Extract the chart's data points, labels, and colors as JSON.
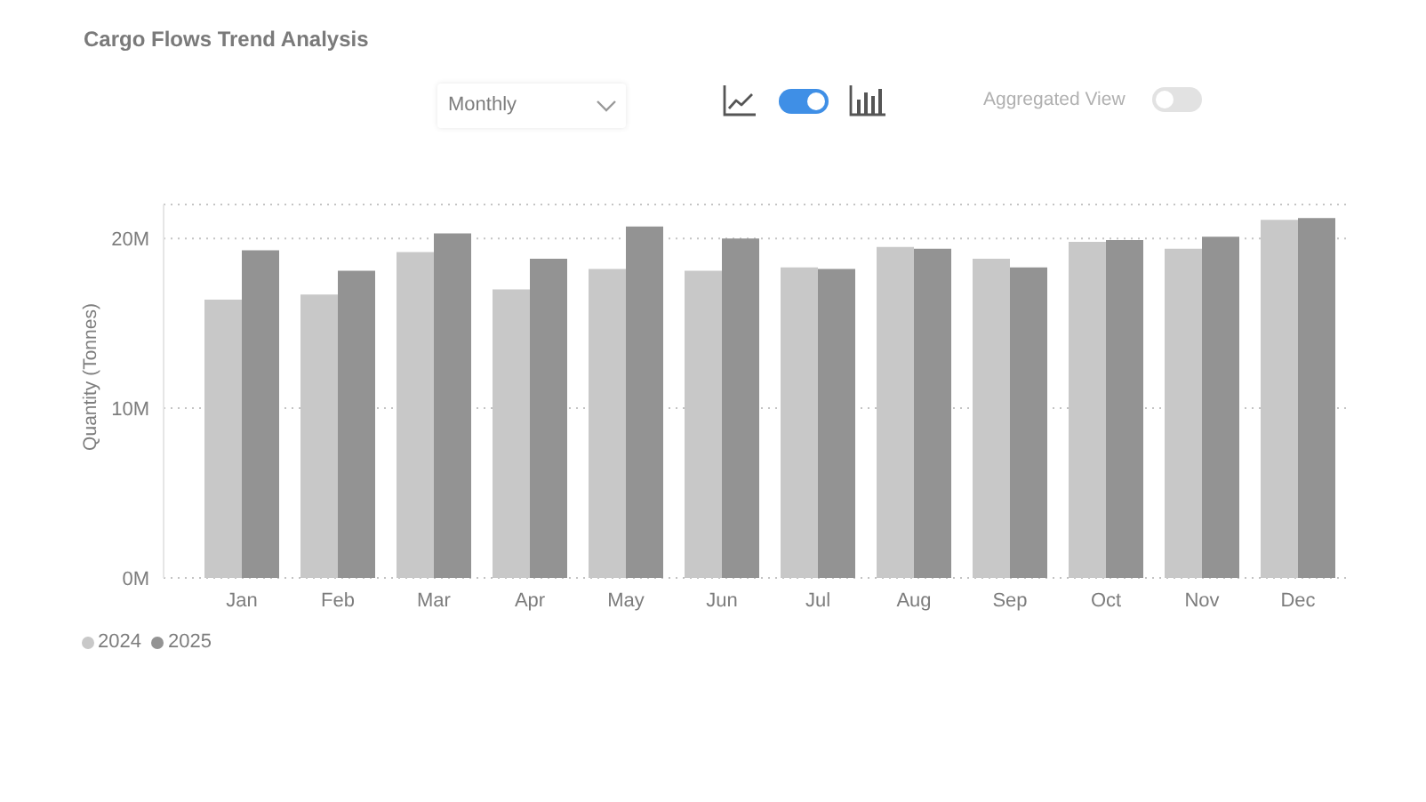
{
  "chart_data": {
    "type": "bar",
    "title": "Cargo Flows Trend Analysis",
    "ylabel": "Quantity (Tonnes)",
    "categories": [
      "Jan",
      "Feb",
      "Mar",
      "Apr",
      "May",
      "Jun",
      "Jul",
      "Aug",
      "Sep",
      "Oct",
      "Nov",
      "Dec"
    ],
    "series": [
      {
        "name": "2024",
        "color": "#c8c8c8",
        "values": [
          16400000,
          16700000,
          19200000,
          17000000,
          18200000,
          18100000,
          18300000,
          19500000,
          18800000,
          19800000,
          19400000,
          21100000
        ]
      },
      {
        "name": "2025",
        "color": "#939393",
        "values": [
          19300000,
          18100000,
          20300000,
          18800000,
          20700000,
          20000000,
          18200000,
          19400000,
          18300000,
          19900000,
          20100000,
          21200000
        ]
      }
    ],
    "ylim": [
      0,
      22000000
    ],
    "yticks": [
      {
        "value": 0,
        "label": "0M"
      },
      {
        "value": 10000000,
        "label": "10M"
      },
      {
        "value": 20000000,
        "label": "20M"
      }
    ],
    "grid": "y",
    "legend": "bottom left",
    "annotations": [
      "Monthly",
      "Aggregated View"
    ]
  }
}
